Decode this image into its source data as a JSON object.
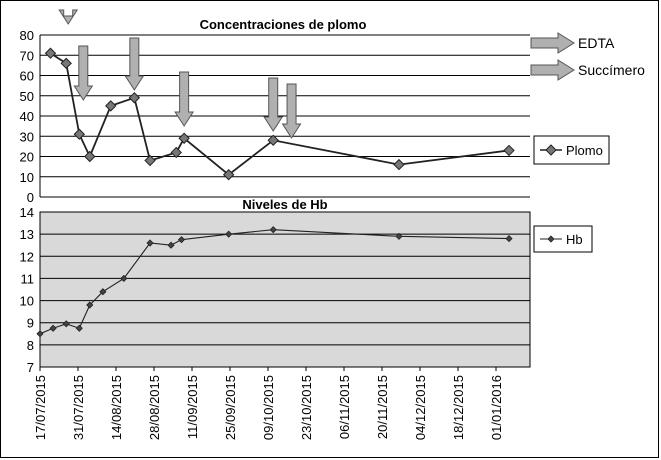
{
  "chart_data": [
    {
      "type": "line",
      "title": "Concentraciones de plomo",
      "ylim": [
        0,
        80
      ],
      "yticks": [
        0,
        10,
        20,
        30,
        40,
        50,
        60,
        70,
        80
      ],
      "grid": true,
      "legend_position": "right",
      "colors": {
        "line": "#222222",
        "grid": "#000000",
        "background": "#ffffff",
        "arrow_fill": "#b0b0b0",
        "arrow_stroke": "#555555"
      },
      "series": [
        {
          "name": "Plomo",
          "marker": "diamond",
          "x": [
            "2015-07-21",
            "2015-07-27",
            "2015-08-01",
            "2015-08-05",
            "2015-08-13",
            "2015-08-22",
            "2015-08-28",
            "2015-09-07",
            "2015-09-10",
            "2015-09-27",
            "2015-10-14",
            "2015-12-01",
            "2016-01-12"
          ],
          "values": [
            71,
            66,
            31,
            20,
            45,
            49,
            18,
            22,
            29,
            11,
            28,
            16,
            23
          ]
        }
      ],
      "arrows": [
        "2015-07-27",
        "2015-08-01",
        "2015-08-22",
        "2015-09-10",
        "2015-10-14",
        "2015-10-21"
      ],
      "annotations": [
        {
          "label": "EDTA"
        },
        {
          "label": "Succímero"
        }
      ]
    },
    {
      "type": "line",
      "title": "Niveles de Hb",
      "ylim": [
        7,
        14
      ],
      "yticks": [
        7,
        8,
        9,
        10,
        11,
        12,
        13,
        14
      ],
      "grid": true,
      "legend_position": "right",
      "colors": {
        "line": "#222222",
        "grid": "#000000",
        "background": "#d9d9d9"
      },
      "x_tick_labels": [
        "17/07/2015",
        "31/07/2015",
        "14/08/2015",
        "28/08/2015",
        "11/09/2015",
        "25/09/2015",
        "09/10/2015",
        "23/10/2015",
        "06/11/2015",
        "20/11/2015",
        "04/12/2015",
        "18/12/2015",
        "01/01/2016"
      ],
      "series": [
        {
          "name": "Hb",
          "marker": "diamond-small",
          "x": [
            "2015-07-17",
            "2015-07-22",
            "2015-07-27",
            "2015-08-01",
            "2015-08-05",
            "2015-08-10",
            "2015-08-18",
            "2015-08-28",
            "2015-09-05",
            "2015-09-09",
            "2015-09-27",
            "2015-10-14",
            "2015-12-01",
            "2016-01-12"
          ],
          "values": [
            8.5,
            8.75,
            8.95,
            8.75,
            9.8,
            10.4,
            11.0,
            12.6,
            12.5,
            12.75,
            13.0,
            13.2,
            12.9,
            12.8
          ]
        }
      ]
    }
  ]
}
